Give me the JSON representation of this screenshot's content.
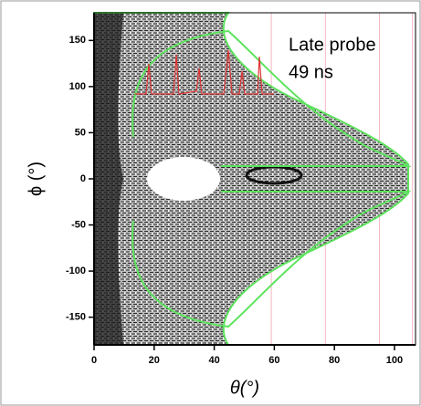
{
  "chart_data": {
    "type": "image",
    "annotations": [
      "Late probe",
      "49 ns"
    ],
    "xlabel": "θ(°)",
    "ylabel": "ϕ (°)",
    "xlim": [
      0,
      107
    ],
    "ylim": [
      -180,
      180
    ],
    "xticks": [
      0,
      20,
      40,
      60,
      80,
      100
    ],
    "yticks": [
      -150,
      -100,
      -50,
      0,
      50,
      100,
      150
    ],
    "reference_lines": {
      "color": "#f4b6c2",
      "x": [
        59,
        77,
        95,
        106
      ]
    }
  }
}
